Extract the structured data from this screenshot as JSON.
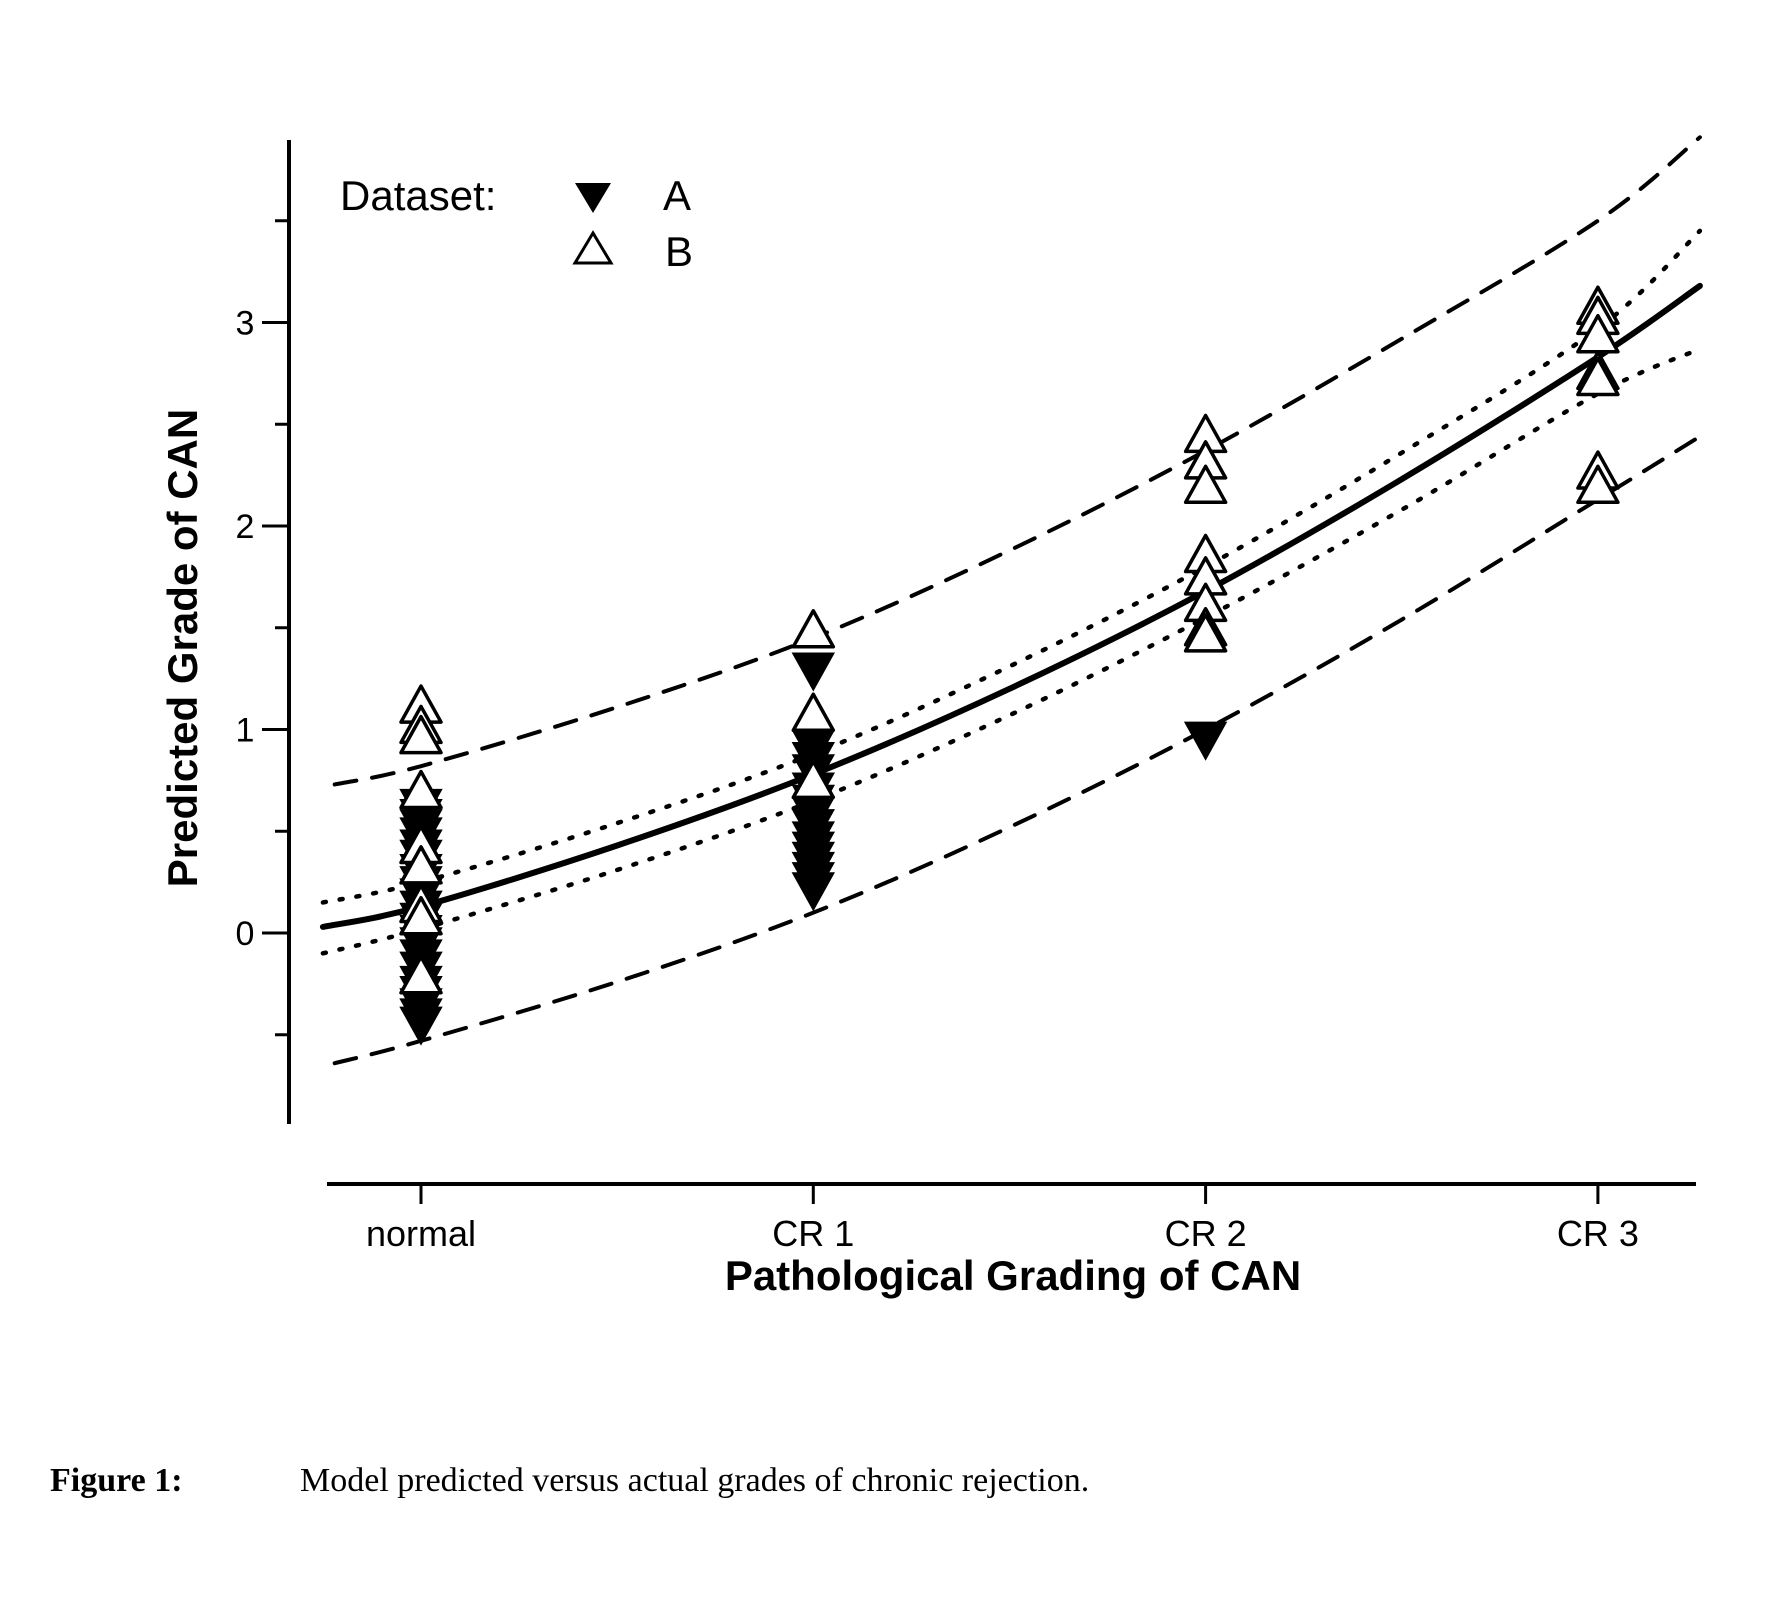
{
  "chart_data": {
    "type": "scatter",
    "title": "",
    "xlabel": "Pathological Grading of CAN",
    "ylabel": "Predicted Grade of CAN",
    "categories": [
      "normal",
      "CR 1",
      "CR 2",
      "CR 3"
    ],
    "x_category_values": [
      0,
      1,
      2,
      3
    ],
    "xlim": [
      -0.27,
      3.27
    ],
    "ylim": [
      -0.9,
      3.85
    ],
    "y_ticks": [
      0,
      1,
      2,
      3
    ],
    "y_minor_ticks": [
      -0.5,
      0.5,
      1.5,
      2.5,
      3.5
    ],
    "y_tick_labels": [
      "0",
      "1",
      "2",
      "3"
    ],
    "grid": false,
    "legend": {
      "title": "Dataset:",
      "placement": "top-left",
      "entries": [
        {
          "label": "A",
          "marker": "filled-down-triangle"
        },
        {
          "label": "B",
          "marker": "open-up-triangle"
        }
      ]
    },
    "series": [
      {
        "name": "A",
        "marker": "filled-down-triangle",
        "color": "#000000",
        "points": [
          [
            0,
            0.62
          ],
          [
            0,
            0.57
          ],
          [
            0,
            0.52
          ],
          [
            0,
            0.48
          ],
          [
            0,
            0.42
          ],
          [
            0,
            0.37
          ],
          [
            0,
            0.3
          ],
          [
            0,
            0.24
          ],
          [
            0,
            0.18
          ],
          [
            0,
            0.12
          ],
          [
            0,
            0.06
          ],
          [
            0,
            0.0
          ],
          [
            0,
            -0.06
          ],
          [
            0,
            -0.12
          ],
          [
            0,
            -0.18
          ],
          [
            0,
            -0.25
          ],
          [
            0,
            -0.3
          ],
          [
            0,
            -0.36
          ],
          [
            0,
            -0.41
          ],
          [
            0,
            -0.45
          ],
          [
            1,
            1.29
          ],
          [
            1,
            0.91
          ],
          [
            1,
            0.85
          ],
          [
            1,
            0.79
          ],
          [
            1,
            0.7
          ],
          [
            1,
            0.64
          ],
          [
            1,
            0.58
          ],
          [
            1,
            0.52
          ],
          [
            1,
            0.46
          ],
          [
            1,
            0.41
          ],
          [
            1,
            0.36
          ],
          [
            1,
            0.31
          ],
          [
            1,
            0.26
          ],
          [
            1,
            0.21
          ],
          [
            2,
            0.95
          ]
        ]
      },
      {
        "name": "B",
        "marker": "open-up-triangle",
        "color": "#000000",
        "points": [
          [
            0,
            1.12
          ],
          [
            0,
            1.02
          ],
          [
            0,
            0.97
          ],
          [
            0,
            0.7
          ],
          [
            0,
            0.43
          ],
          [
            0,
            0.33
          ],
          [
            0,
            0.14
          ],
          [
            0,
            0.08
          ],
          [
            0,
            -0.21
          ],
          [
            1,
            1.49
          ],
          [
            1,
            1.08
          ],
          [
            1,
            0.75
          ],
          [
            2,
            2.45
          ],
          [
            2,
            2.32
          ],
          [
            2,
            2.2
          ],
          [
            2,
            1.86
          ],
          [
            2,
            1.75
          ],
          [
            2,
            1.62
          ],
          [
            2,
            1.5
          ],
          [
            2,
            1.47
          ],
          [
            3,
            3.08
          ],
          [
            3,
            3.03
          ],
          [
            3,
            2.94
          ],
          [
            3,
            2.76
          ],
          [
            3,
            2.73
          ],
          [
            3,
            2.27
          ],
          [
            3,
            2.2
          ]
        ]
      }
    ],
    "curves": [
      {
        "name": "fit",
        "style": "solid",
        "x": [
          -0.25,
          0,
          0.5,
          1,
          1.5,
          2,
          2.5,
          3,
          3.26
        ],
        "y": [
          0.03,
          0.13,
          0.43,
          0.78,
          1.2,
          1.68,
          2.23,
          2.83,
          3.18
        ]
      },
      {
        "name": "ci-upper",
        "style": "dotted",
        "x": [
          -0.25,
          0,
          0.5,
          1,
          1.5,
          2,
          2.5,
          3,
          3.26
        ],
        "y": [
          0.15,
          0.25,
          0.54,
          0.88,
          1.31,
          1.8,
          2.36,
          2.97,
          3.45
        ]
      },
      {
        "name": "ci-lower",
        "style": "dotted",
        "x": [
          -0.25,
          0,
          0.5,
          1,
          1.5,
          2,
          2.5,
          3,
          3.26
        ],
        "y": [
          -0.1,
          0.02,
          0.31,
          0.65,
          1.07,
          1.55,
          2.08,
          2.65,
          2.87
        ]
      },
      {
        "name": "pi-upper",
        "style": "dashed",
        "x": [
          -0.22,
          0,
          0.5,
          1,
          1.5,
          2,
          2.5,
          3,
          3.26
        ],
        "y": [
          0.73,
          0.82,
          1.11,
          1.45,
          1.88,
          2.37,
          2.92,
          3.5,
          3.91
        ]
      },
      {
        "name": "pi-lower",
        "style": "dashed",
        "x": [
          -0.22,
          0,
          0.5,
          1,
          1.5,
          2,
          2.5,
          3,
          3.26
        ],
        "y": [
          -0.64,
          -0.53,
          -0.24,
          0.1,
          0.52,
          1.0,
          1.54,
          2.13,
          2.44
        ]
      }
    ]
  },
  "caption": {
    "label": "Figure 1:",
    "text": "Model predicted versus actual grades of chronic rejection."
  }
}
